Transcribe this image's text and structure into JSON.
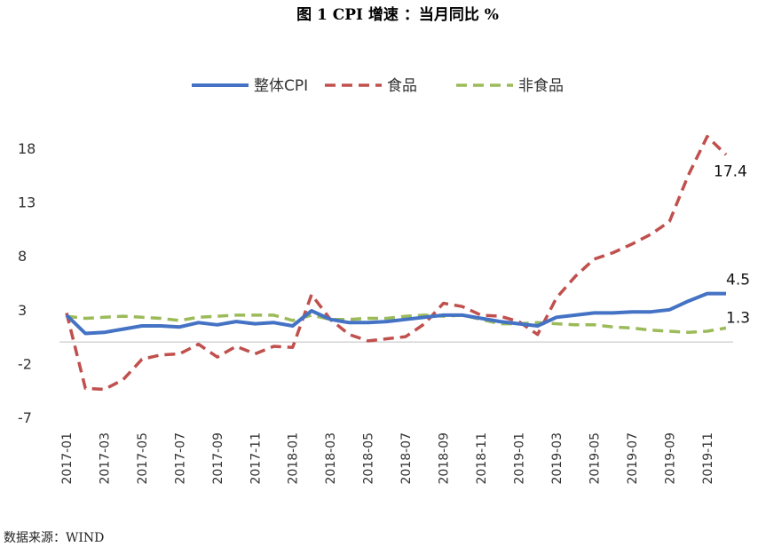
{
  "header": {
    "title": "图 1    CPI 增速 ：当月同比  %"
  },
  "footer": {
    "source": "数据来源：WIND"
  },
  "chart_data": {
    "type": "line",
    "title": "图 1    CPI 增速 ：当月同比  %",
    "xlabel": "",
    "ylabel": "",
    "ylim": [
      -7,
      22
    ],
    "yticks": [
      -7,
      -2,
      3,
      8,
      13,
      18
    ],
    "grid": false,
    "legend_position": "top",
    "categories": [
      "2017-01",
      "2017-02",
      "2017-03",
      "2017-04",
      "2017-05",
      "2017-06",
      "2017-07",
      "2017-08",
      "2017-09",
      "2017-10",
      "2017-11",
      "2017-12",
      "2018-01",
      "2018-02",
      "2018-03",
      "2018-04",
      "2018-05",
      "2018-06",
      "2018-07",
      "2018-08",
      "2018-09",
      "2018-10",
      "2018-11",
      "2018-12",
      "2019-01",
      "2019-02",
      "2019-03",
      "2019-04",
      "2019-05",
      "2019-06",
      "2019-07",
      "2019-08",
      "2019-09",
      "2019-10",
      "2019-11",
      "2019-12"
    ],
    "xtick_labels": [
      "2017-01",
      "2017-03",
      "2017-05",
      "2017-07",
      "2017-09",
      "2017-11",
      "2018-01",
      "2018-03",
      "2018-05",
      "2018-07",
      "2018-09",
      "2018-11",
      "2019-01",
      "2019-03",
      "2019-05",
      "2019-07",
      "2019-09",
      "2019-11"
    ],
    "series": [
      {
        "name": "整体CPI",
        "color": "#4472C4",
        "dash": "solid",
        "values": [
          2.5,
          0.8,
          0.9,
          1.2,
          1.5,
          1.5,
          1.4,
          1.8,
          1.6,
          1.9,
          1.7,
          1.8,
          1.5,
          2.9,
          2.1,
          1.8,
          1.8,
          1.9,
          2.1,
          2.3,
          2.5,
          2.5,
          2.2,
          1.9,
          1.7,
          1.5,
          2.3,
          2.5,
          2.7,
          2.7,
          2.8,
          2.8,
          3.0,
          3.8,
          4.5,
          4.5
        ]
      },
      {
        "name": "食品",
        "color": "#C0504D",
        "dash": "dashed",
        "values": [
          2.7,
          -4.3,
          -4.4,
          -3.5,
          -1.6,
          -1.2,
          -1.1,
          -0.2,
          -1.4,
          -0.4,
          -1.1,
          -0.4,
          -0.5,
          4.4,
          2.1,
          0.7,
          0.1,
          0.3,
          0.5,
          1.7,
          3.6,
          3.3,
          2.5,
          2.4,
          1.9,
          0.7,
          4.1,
          6.1,
          7.7,
          8.3,
          9.1,
          10.0,
          11.2,
          15.5,
          19.1,
          17.4
        ]
      },
      {
        "name": "非食品",
        "color": "#9BBB59",
        "dash": "dashed",
        "values": [
          2.4,
          2.2,
          2.3,
          2.4,
          2.3,
          2.2,
          2.0,
          2.3,
          2.4,
          2.5,
          2.5,
          2.5,
          2.0,
          2.5,
          2.1,
          2.1,
          2.2,
          2.2,
          2.4,
          2.5,
          2.4,
          2.5,
          2.1,
          1.7,
          1.7,
          1.8,
          1.7,
          1.6,
          1.6,
          1.4,
          1.3,
          1.1,
          1.0,
          0.9,
          1.0,
          1.3
        ]
      }
    ],
    "data_labels": [
      {
        "series": "食品",
        "text": "17.4"
      },
      {
        "series": "整体CPI",
        "text": "4.5"
      },
      {
        "series": "非食品",
        "text": "1.3"
      }
    ]
  }
}
